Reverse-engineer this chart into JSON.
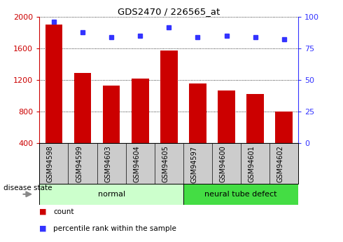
{
  "title": "GDS2470 / 226565_at",
  "samples": [
    "GSM94598",
    "GSM94599",
    "GSM94603",
    "GSM94604",
    "GSM94605",
    "GSM94597",
    "GSM94600",
    "GSM94601",
    "GSM94602"
  ],
  "counts": [
    1900,
    1290,
    1130,
    1220,
    1570,
    1155,
    1065,
    1020,
    800
  ],
  "percentiles": [
    96,
    88,
    84,
    85,
    92,
    84,
    85,
    84,
    82
  ],
  "group_labels": [
    "normal",
    "neural tube defect"
  ],
  "group_split": 5,
  "bar_color": "#cc0000",
  "dot_color": "#3333ff",
  "ylim_left": [
    400,
    2000
  ],
  "ylim_right": [
    0,
    100
  ],
  "yticks_left": [
    400,
    800,
    1200,
    1600,
    2000
  ],
  "yticks_right": [
    0,
    25,
    50,
    75,
    100
  ],
  "tick_area_bg": "#cccccc",
  "normal_bg": "#ccffcc",
  "defect_bg": "#44dd44",
  "bar_bottom": 400,
  "legend_count_label": "count",
  "legend_pct_label": "percentile rank within the sample",
  "disease_state_label": "disease state"
}
